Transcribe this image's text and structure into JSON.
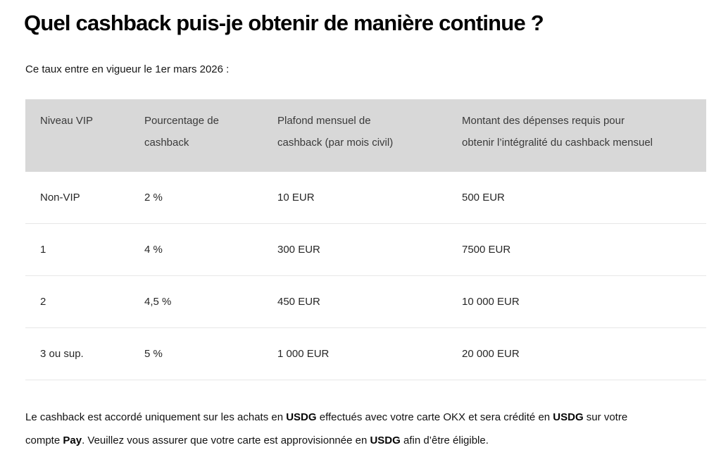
{
  "page": {
    "title": "Quel cashback puis-je obtenir de manière continue ?",
    "intro": "Ce taux entre en vigueur le 1er mars 2026 :"
  },
  "colors": {
    "header_bg": "#d8d8d8",
    "row_divider": "#e7e7e7",
    "title_text": "#030303",
    "header_text": "#3a3a3a",
    "cell_text": "#272727"
  },
  "table": {
    "columns": [
      {
        "label": "Niveau VIP",
        "lines": [
          "Niveau VIP"
        ]
      },
      {
        "label": "Pourcentage de cashback",
        "lines": [
          "Pourcentage de",
          "cashback"
        ]
      },
      {
        "label": "Plafond mensuel de cashback (par mois civil)",
        "lines": [
          "Plafond mensuel de",
          "cashback (par mois civil)"
        ]
      },
      {
        "label": "Montant des dépenses requis pour obtenir l’intégralité du cashback mensuel",
        "lines": [
          "Montant des dépenses requis pour",
          "obtenir l’intégralité du cashback mensuel"
        ]
      }
    ],
    "rows": [
      [
        "Non-VIP",
        "2 %",
        "10 EUR",
        "500 EUR"
      ],
      [
        "1",
        "4 %",
        "300 EUR",
        "7500 EUR"
      ],
      [
        "2",
        "4,5 %",
        "450 EUR",
        "10 000 EUR"
      ],
      [
        "3 ou sup.",
        "5 %",
        "1 000 EUR",
        "20 000 EUR"
      ]
    ]
  },
  "footer": {
    "lines": [
      [
        {
          "text": "Le cashback est accordé uniquement sur les achats en ",
          "bold": false
        },
        {
          "text": "USDG",
          "bold": true
        },
        {
          "text": " effectués avec votre carte OKX et sera crédité en ",
          "bold": false
        },
        {
          "text": "USDG",
          "bold": true
        },
        {
          "text": " sur votre",
          "bold": false
        }
      ],
      [
        {
          "text": "compte ",
          "bold": false
        },
        {
          "text": "Pay",
          "bold": true
        },
        {
          "text": ". Veuillez vous assurer que votre carte est approvisionnée en ",
          "bold": false
        },
        {
          "text": "USDG",
          "bold": true
        },
        {
          "text": " afin d’être éligible.",
          "bold": false
        }
      ]
    ]
  }
}
